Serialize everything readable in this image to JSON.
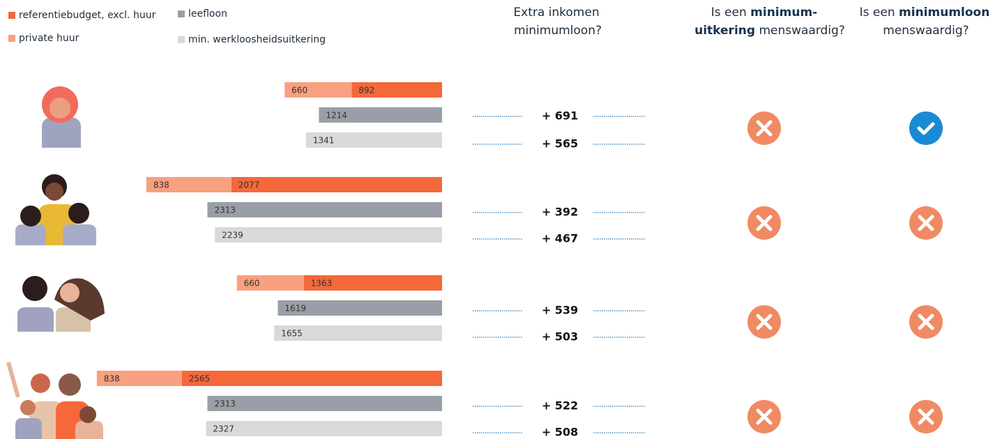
{
  "chart_data": {
    "type": "bar",
    "categories": [
      null,
      null,
      null,
      null
    ],
    "series": [
      {
        "name": "referentiebudget, excl. huur",
        "color": "#f4683a",
        "values": [
          892,
          2077,
          1363,
          2565
        ]
      },
      {
        "name": "private huur",
        "color": "#f8a07f",
        "values": [
          660,
          838,
          660,
          838
        ]
      },
      {
        "name": "leefloon",
        "color": "#9a9fa7",
        "values": [
          1214,
          2313,
          1619,
          2313
        ]
      },
      {
        "name": "min. werkloosheidsuitkering",
        "color": "#d9d9d9",
        "values": [
          1341,
          2239,
          1655,
          2327
        ]
      }
    ],
    "extra_inkomen": {
      "header": [
        "Extra inkomen",
        "minimumloon?"
      ],
      "leefloon": {
        "values": [
          691,
          392,
          539,
          522
        ],
        "value_labels": [
          "+ 691",
          "+ 392",
          "+ 539",
          "+ 522"
        ]
      },
      "werkloosheid": {
        "values": [
          565,
          467,
          503,
          508
        ],
        "value_labels": [
          "+ 565",
          "+ 467",
          "+ 503",
          "+ 508"
        ]
      }
    },
    "menswaardig_uitkering": {
      "header": [
        [
          "Is een ",
          "minimum-"
        ],
        [
          "uitkering",
          " menswaardig?"
        ]
      ],
      "values": [
        false,
        false,
        false,
        false
      ]
    },
    "menswaardig_minimumloon": {
      "header": [
        [
          "Is een ",
          "minimumloon"
        ],
        [
          "menswaardig?"
        ]
      ],
      "values": [
        true,
        false,
        false,
        false
      ]
    }
  }
}
